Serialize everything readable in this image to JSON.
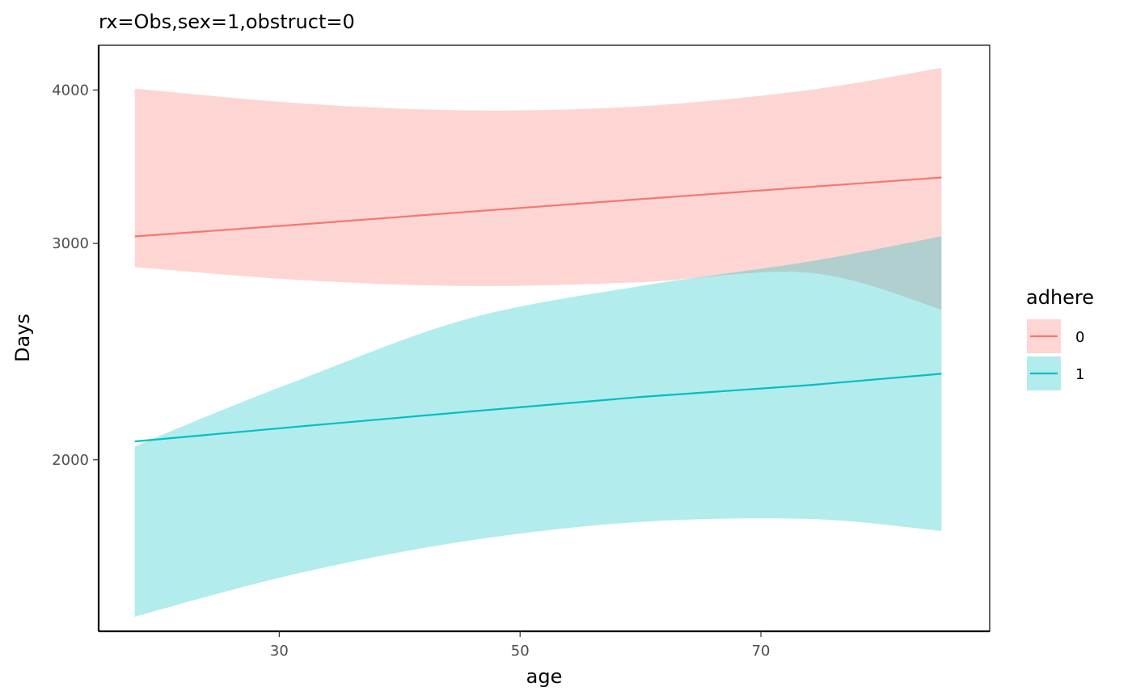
{
  "chart_data": {
    "type": "area",
    "title": "rx=Obs,sex=1,obstruct=0",
    "xlabel": "age",
    "ylabel": "Days",
    "xlim": [
      15,
      89
    ],
    "ylim": [
      1450,
      4350
    ],
    "y_scale": "log",
    "x_ticks": [
      30,
      50,
      70
    ],
    "y_ticks": [
      2000,
      3000,
      4000
    ],
    "grid": false,
    "legend": {
      "title": "adhere",
      "position": "right"
    },
    "x": [
      18,
      32,
      46,
      60,
      74,
      85
    ],
    "series": [
      {
        "name": "0",
        "color": "#F8766D",
        "fill": "#F8766D",
        "fit": [
          3040,
          3110,
          3185,
          3260,
          3335,
          3395
        ],
        "lower": [
          2870,
          2800,
          2770,
          2790,
          2840,
          2650
        ],
        "upper": [
          4010,
          3900,
          3850,
          3880,
          4000,
          4170
        ]
      },
      {
        "name": "1",
        "color": "#00BFC4",
        "fill": "#00BFC4",
        "fit": [
          2070,
          2130,
          2190,
          2250,
          2300,
          2350
        ],
        "lower": [
          1490,
          1620,
          1720,
          1780,
          1790,
          1750
        ],
        "upper": [
          2050,
          2330,
          2610,
          2770,
          2900,
          3040
        ]
      }
    ]
  }
}
